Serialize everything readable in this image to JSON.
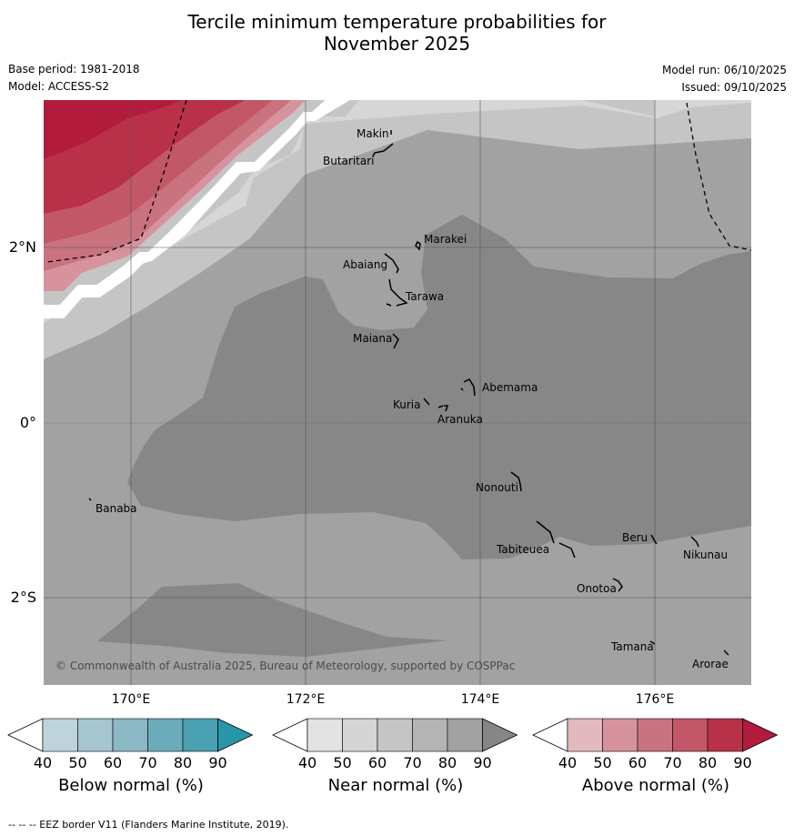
{
  "title_line1": "Tercile minimum temperature probabilities for",
  "title_line2": "November 2025",
  "base_period": "Base period: 1981-2018",
  "model": "Model: ACCESS-S2",
  "model_run": "Model run: 06/10/2025",
  "issued": "Issued: 09/10/2025",
  "copyright": "© Commonwealth of Australia 2025, Bureau of Meteorology, supported by COSPPac",
  "axes": {
    "lat_labels": [
      "2°N",
      "0°",
      "2°S"
    ],
    "lon_labels": [
      "170°E",
      "172°E",
      "174°E",
      "176°E"
    ]
  },
  "places": [
    "Makin",
    "Butaritari",
    "Marakei",
    "Abaiang",
    "Tarawa",
    "Maiana",
    "Abemama",
    "Kuria",
    "Aranuka",
    "Nonouti",
    "Banaba",
    "Beru",
    "Nikunau",
    "Tabiteuea",
    "Onotoa",
    "Tamana",
    "Arorae"
  ],
  "legends": [
    {
      "label": "Below normal (%)",
      "ticks": [
        "40",
        "50",
        "60",
        "70",
        "80",
        "90"
      ],
      "colors": [
        "#ffffff",
        "#bfd3dc",
        "#a6c6cf",
        "#8bb9c5",
        "#6aacba",
        "#4aa1b2",
        "#2a94a8"
      ]
    },
    {
      "label": "Near normal (%)",
      "ticks": [
        "40",
        "50",
        "60",
        "70",
        "80",
        "90"
      ],
      "colors": [
        "#ffffff",
        "#e3e3e3",
        "#d5d5d5",
        "#c5c5c5",
        "#b4b4b4",
        "#a2a2a2",
        "#868686"
      ]
    },
    {
      "label": "Above normal (%)",
      "ticks": [
        "40",
        "50",
        "60",
        "70",
        "80",
        "90"
      ],
      "colors": [
        "#ffffff",
        "#e3b9c0",
        "#d6939e",
        "#c9737f",
        "#c25768",
        "#b83149",
        "#b21b3c"
      ]
    }
  ],
  "footer": "--  --  -- EEZ border V11 (Flanders Marine Institute, 2019)."
}
